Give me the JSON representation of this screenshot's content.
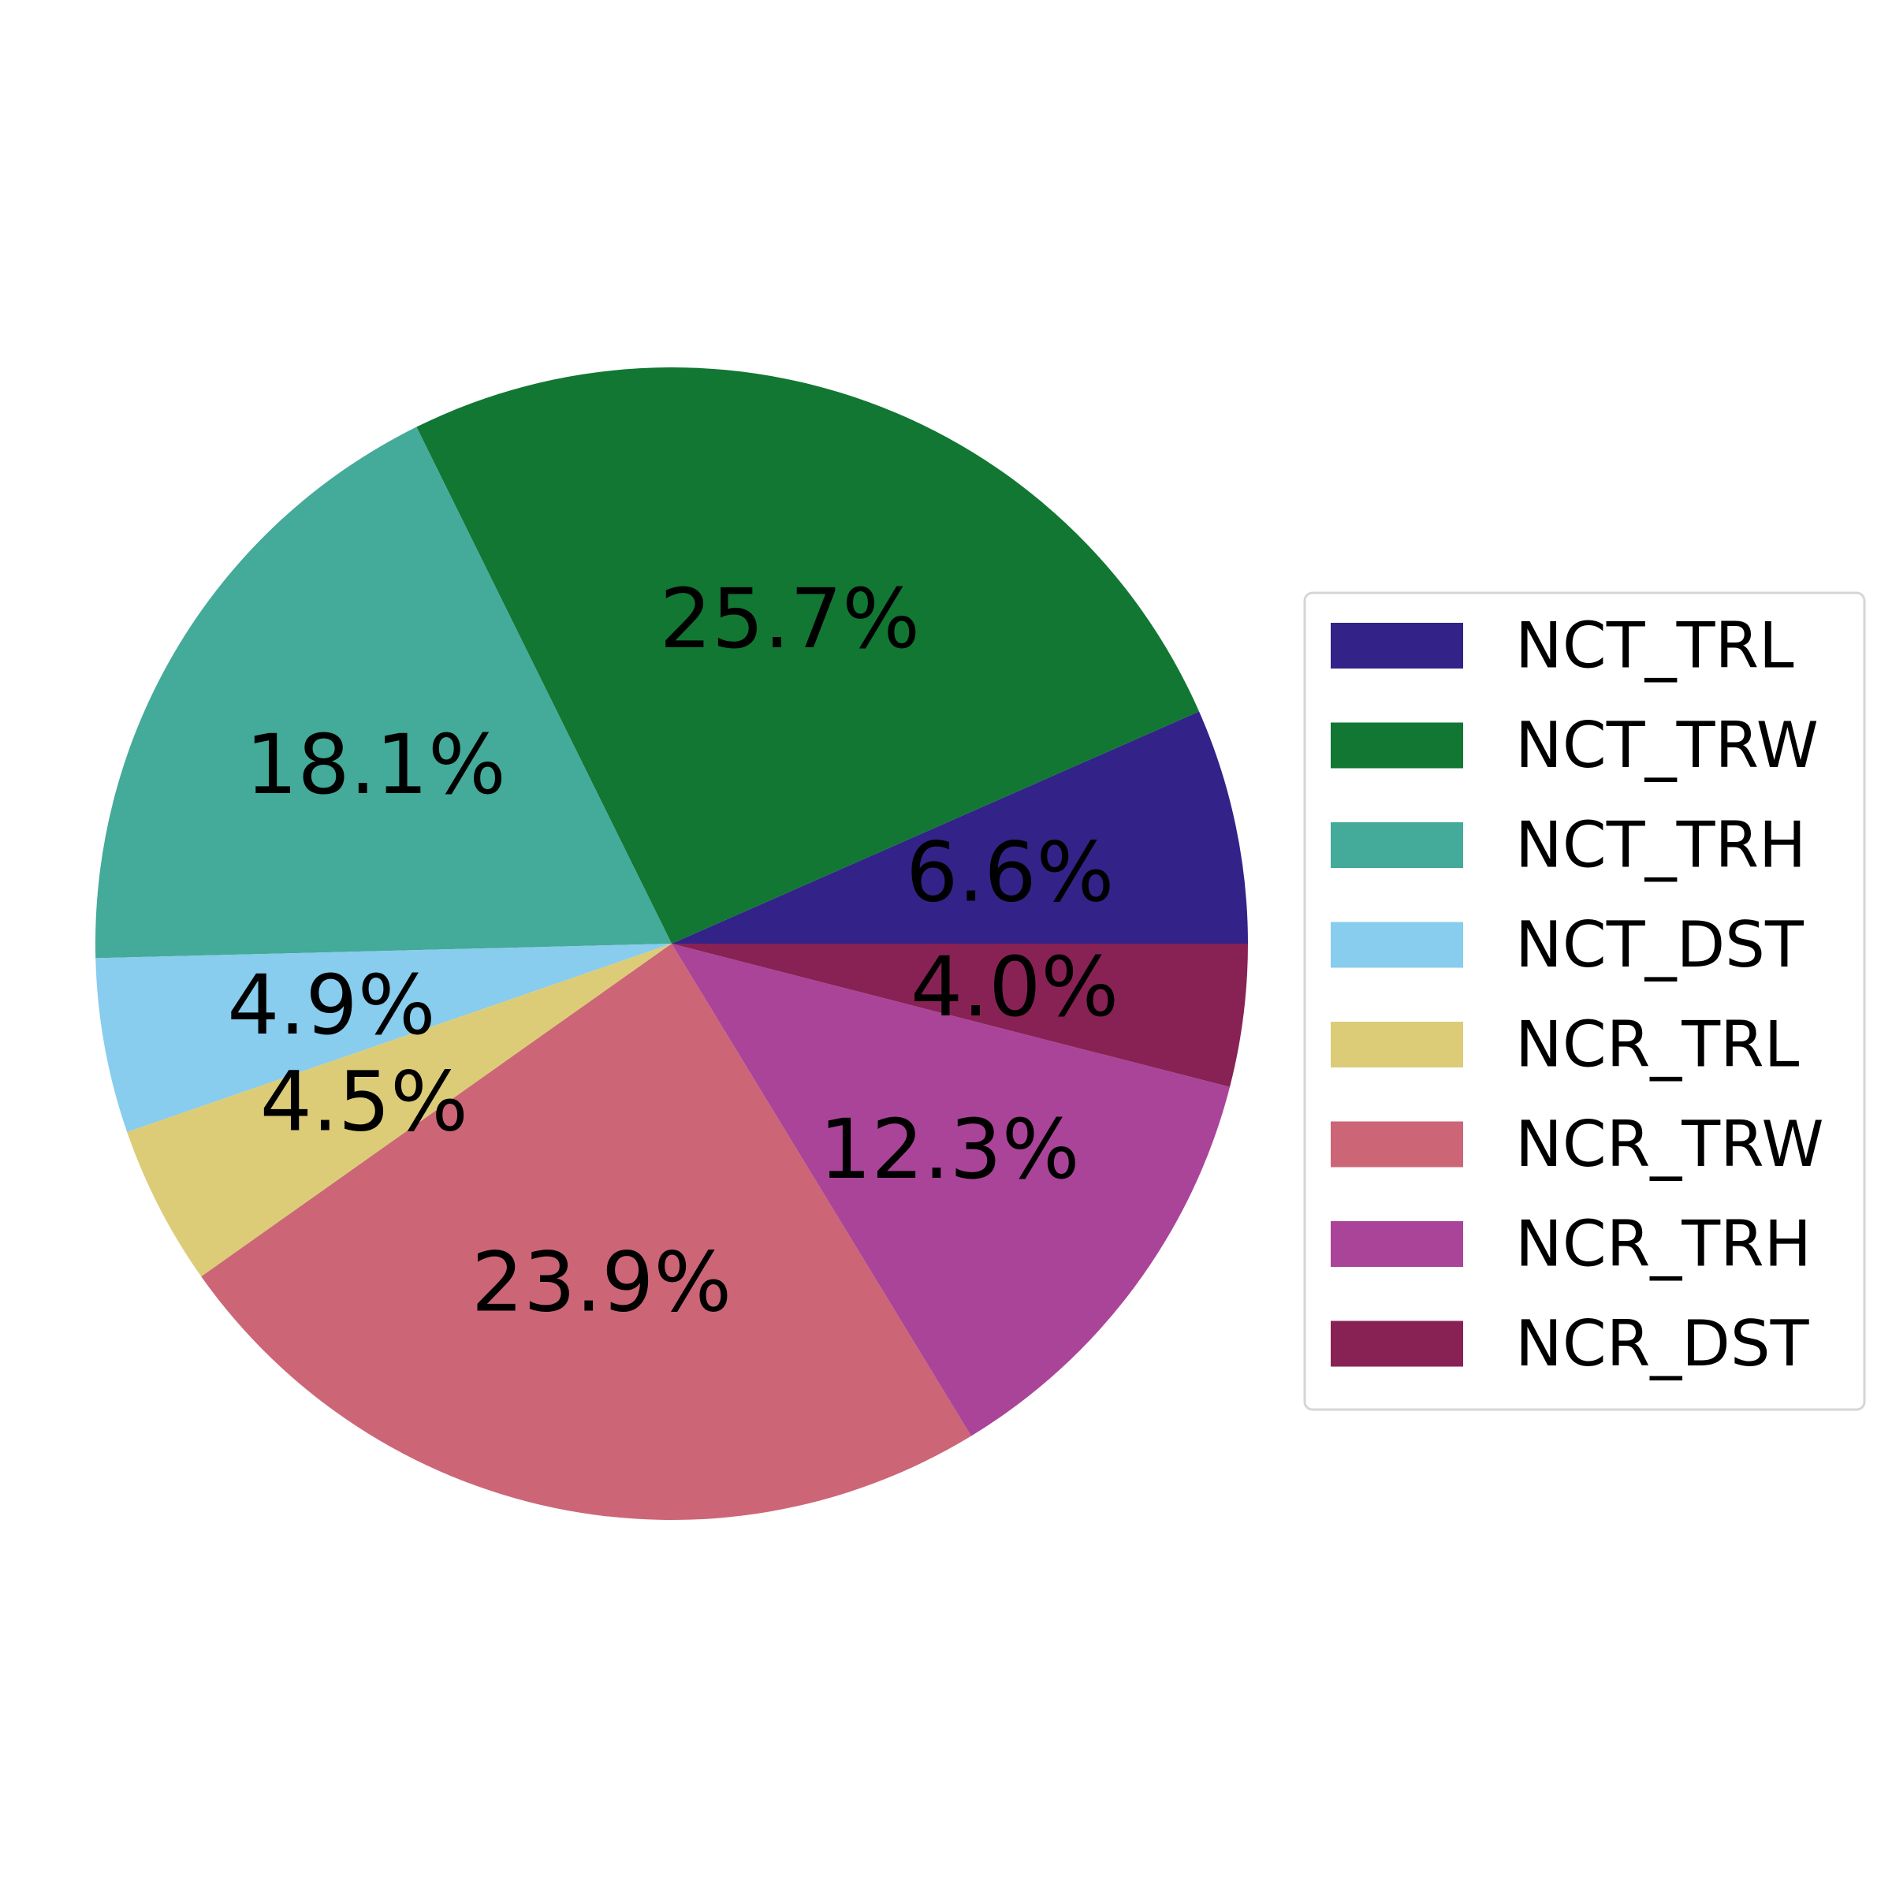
{
  "chart_data": {
    "type": "pie",
    "title": "",
    "start_angle_deg": 0,
    "direction": "counterclockwise",
    "legend_position": "right",
    "slices": [
      {
        "label": "NCT_TRL",
        "value": 6.6,
        "display": "6.6%",
        "color": "#332288"
      },
      {
        "label": "NCT_TRW",
        "value": 25.7,
        "display": "25.7%",
        "color": "#117733"
      },
      {
        "label": "NCT_TRH",
        "value": 18.1,
        "display": "18.1%",
        "color": "#44AA99"
      },
      {
        "label": "NCT_DST",
        "value": 4.9,
        "display": "4.9%",
        "color": "#88CCEE"
      },
      {
        "label": "NCR_TRL",
        "value": 4.5,
        "display": "4.5%",
        "color": "#DDCC77"
      },
      {
        "label": "NCR_TRW",
        "value": 23.9,
        "display": "23.9%",
        "color": "#CC6677"
      },
      {
        "label": "NCR_TRH",
        "value": 12.3,
        "display": "12.3%",
        "color": "#AA4499"
      },
      {
        "label": "NCR_DST",
        "value": 4.0,
        "display": "4.0%",
        "color": "#882255"
      }
    ]
  }
}
